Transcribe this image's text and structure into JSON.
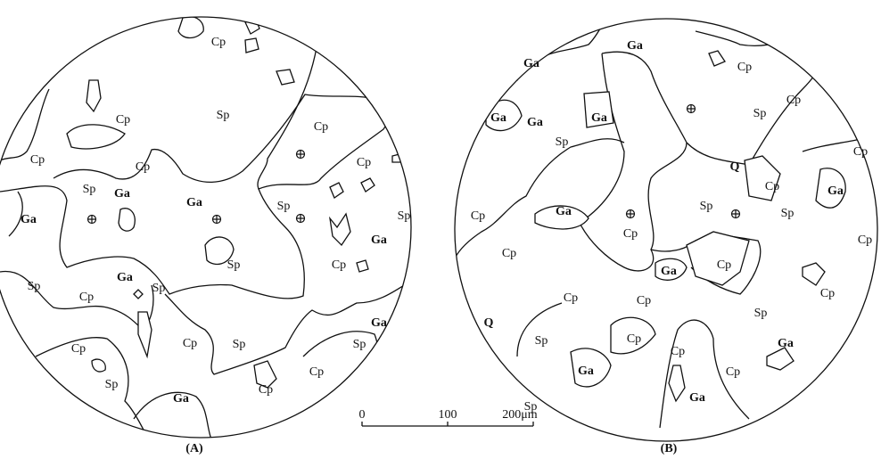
{
  "panels": [
    {
      "caption": "(A)",
      "labels": [
        "Cp",
        "Cp",
        "Sp",
        "Cp",
        "Cp",
        "Cp",
        "Cp",
        "Sp",
        "Ga",
        "Ga",
        "Sp",
        "Ga",
        "Sp",
        "Ga",
        "Sp",
        "Cp",
        "Sp",
        "Cp",
        "Ga",
        "Sp",
        "Ga",
        "Cp",
        "Sp",
        "Sp",
        "Cp",
        "Cp",
        "Cp",
        "Sp",
        "Ga"
      ]
    },
    {
      "caption": "(B)",
      "labels": [
        "Ga",
        "Cp",
        "Ga",
        "Cp",
        "Sp",
        "Ga",
        "Ga",
        "Ga",
        "Sp",
        "Cp",
        "Q",
        "Cp",
        "Ga",
        "Sp",
        "Sp",
        "Ga",
        "Cp",
        "Cp",
        "Cp",
        "Cp",
        "Ga",
        "Cp",
        "Cp",
        "Cp",
        "Cp",
        "Sp",
        "Q",
        "Sp",
        "Cp",
        "Ga",
        "Cp",
        "Ga",
        "Cp",
        "Sp",
        "Ga"
      ]
    }
  ],
  "scale_bar": {
    "ticks": [
      "0",
      "100",
      "200μm"
    ]
  }
}
